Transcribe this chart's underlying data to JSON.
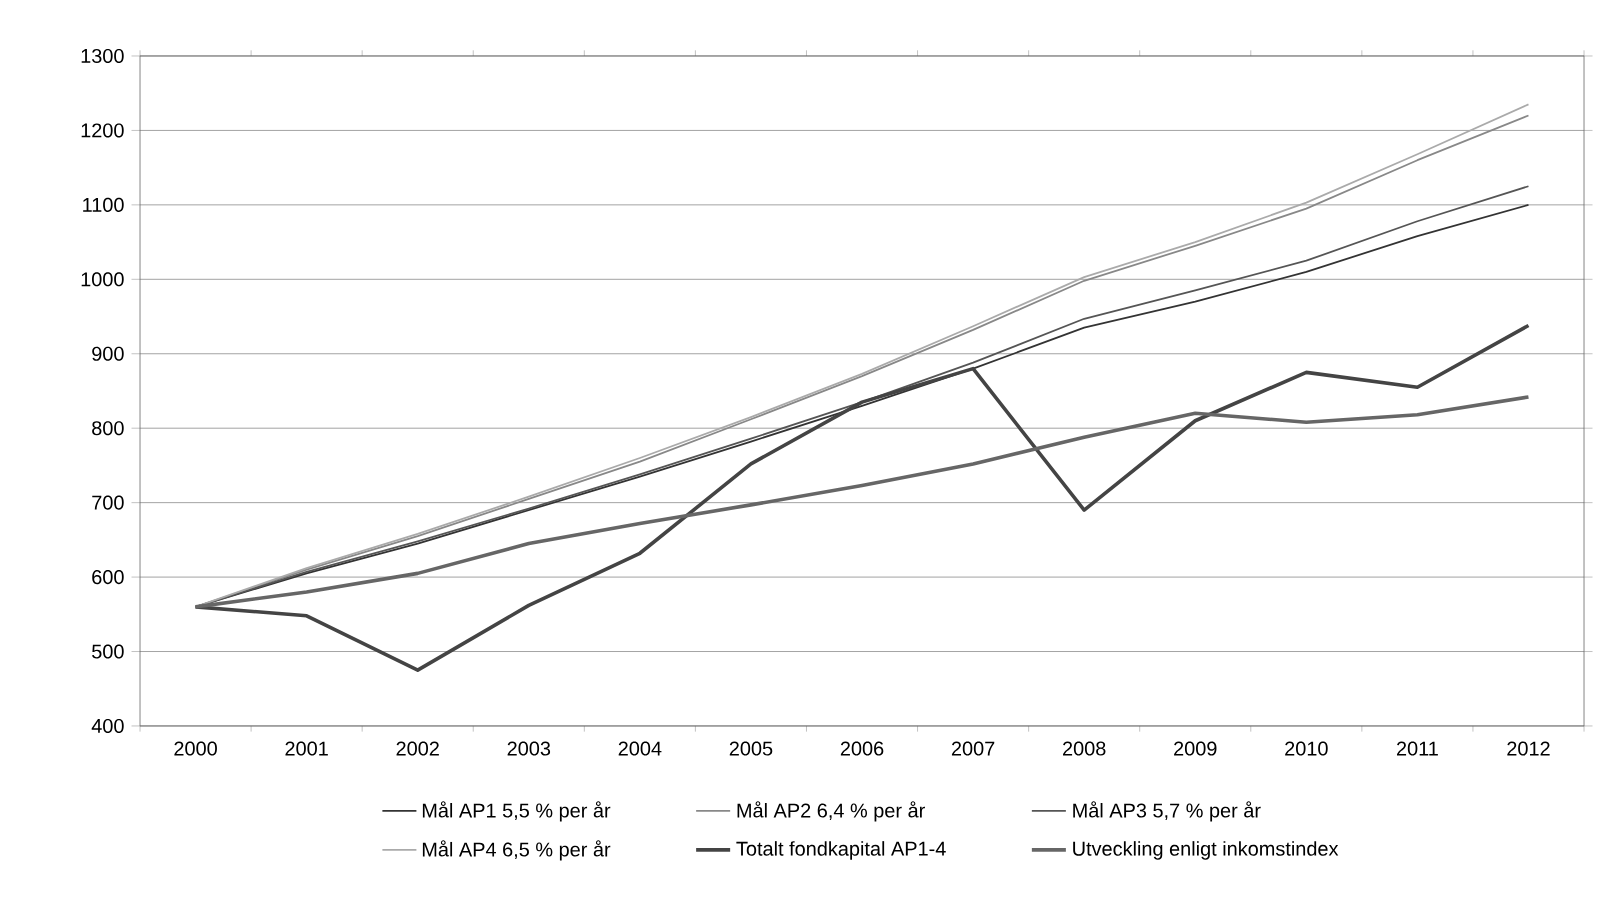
{
  "chart_data": {
    "type": "line",
    "categories": [
      "2000",
      "2001",
      "2002",
      "2003",
      "2004",
      "2005",
      "2006",
      "2007",
      "2008",
      "2009",
      "2010",
      "2011",
      "2012"
    ],
    "series": [
      {
        "name": "Mål AP1 5,5 % per år",
        "color": "#333333",
        "values": [
          560,
          605,
          645,
          690,
          735,
          782,
          830,
          880,
          935,
          970,
          1010,
          1058,
          1100
        ]
      },
      {
        "name": "Mål AP2 6,4 % per år",
        "color": "#888888",
        "values": [
          560,
          610,
          655,
          705,
          755,
          812,
          870,
          932,
          998,
          1045,
          1095,
          1160,
          1220
        ]
      },
      {
        "name": "Mål AP3 5,7 % per år",
        "color": "#555555",
        "values": [
          560,
          607,
          648,
          692,
          738,
          786,
          835,
          888,
          947,
          985,
          1025,
          1078,
          1125
        ]
      },
      {
        "name": "Mål AP4 6,5 % per år",
        "color": "#aaaaaa",
        "values": [
          560,
          612,
          658,
          708,
          760,
          815,
          873,
          937,
          1003,
          1050,
          1103,
          1168,
          1235
        ]
      },
      {
        "name": "Totalt fondkapital AP1-4",
        "color": "#444444",
        "values": [
          560,
          548,
          475,
          562,
          632,
          752,
          835,
          880,
          690,
          810,
          875,
          855,
          938
        ]
      },
      {
        "name": "Utveckling enligt inkomstindex",
        "color": "#666666",
        "values": [
          560,
          580,
          605,
          645,
          672,
          697,
          723,
          752,
          788,
          820,
          808,
          818,
          842
        ]
      }
    ],
    "ylim": [
      400,
      1300
    ],
    "yticks": [
      400,
      500,
      600,
      700,
      800,
      900,
      1000,
      1100,
      1200,
      1300
    ],
    "grid": "y",
    "legend": "bottom"
  }
}
